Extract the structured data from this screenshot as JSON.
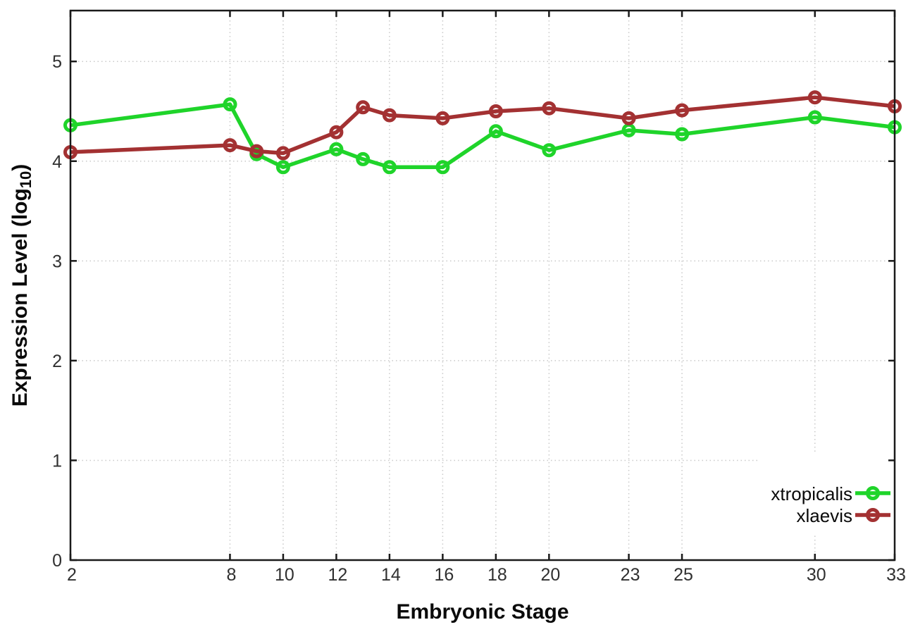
{
  "page": {
    "background_color": "#ffffff",
    "border_color": "#1a1a1a",
    "grid_color": "#c9c9c9",
    "tick_label_color": "#303030"
  },
  "chart_data": {
    "type": "line",
    "title": "",
    "xlabel": "Embryonic Stage",
    "ylabel_parts": {
      "pre": "Expression Level (log",
      "sub": "10",
      "post": ")"
    },
    "xlim": [
      2,
      33
    ],
    "ylim": [
      0,
      5.51
    ],
    "x_ticks": [
      2,
      8,
      10,
      12,
      14,
      16,
      18,
      20,
      23,
      25,
      30,
      33
    ],
    "x_tick_labels": [
      "2",
      "8",
      "10",
      "12",
      "14",
      "16",
      "18",
      "20",
      "23",
      "25",
      "30",
      "33"
    ],
    "y_ticks": [
      0,
      1,
      2,
      3,
      4,
      5
    ],
    "y_tick_labels": [
      "0",
      "1",
      "2",
      "3",
      "4",
      "5"
    ],
    "grid": true,
    "legend_position": "inside-bottom-right",
    "x": [
      2,
      8,
      9,
      10,
      12,
      13,
      14,
      16,
      18,
      20,
      23,
      25,
      30,
      33
    ],
    "series": [
      {
        "name": "xtropicalis",
        "color": "#1fd42a",
        "values": [
          4.36,
          4.57,
          4.07,
          3.94,
          4.12,
          4.02,
          3.94,
          3.94,
          4.3,
          4.11,
          4.31,
          4.27,
          4.44,
          4.34
        ]
      },
      {
        "name": "xlaevis",
        "color": "#a33132",
        "values": [
          4.09,
          4.16,
          4.1,
          4.08,
          4.29,
          4.54,
          4.46,
          4.43,
          4.5,
          4.53,
          4.43,
          4.51,
          4.64,
          4.55
        ]
      }
    ]
  }
}
